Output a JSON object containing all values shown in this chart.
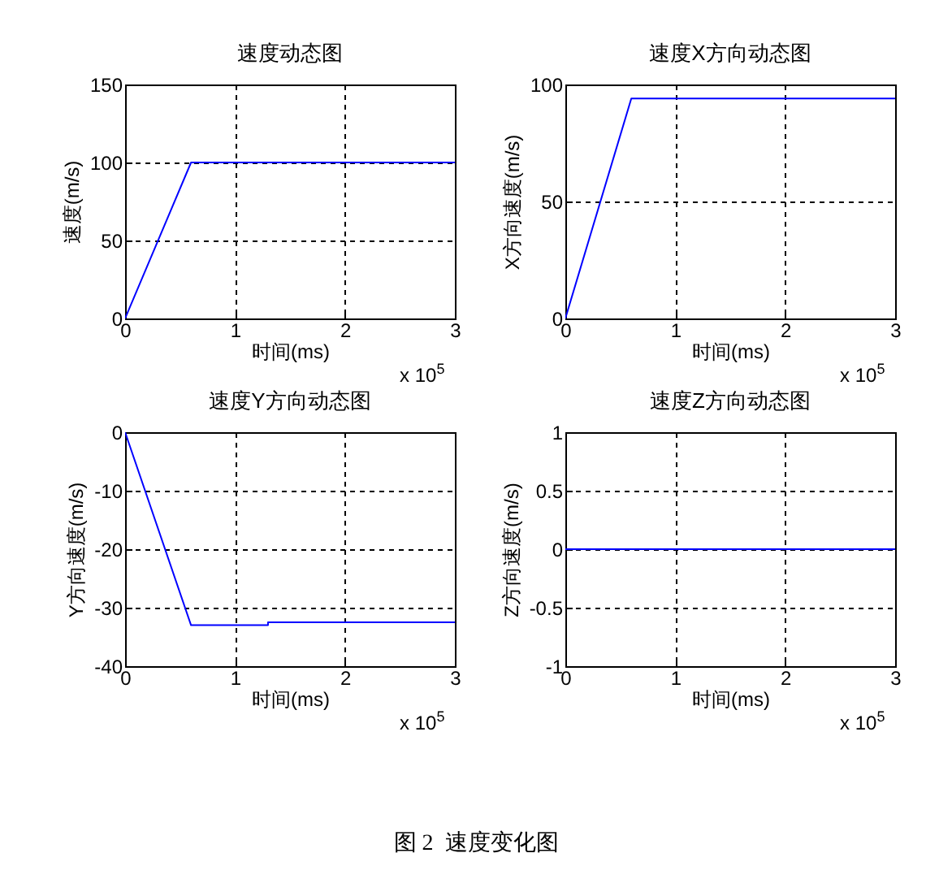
{
  "chart_data": [
    {
      "type": "line",
      "title": "速度动态图",
      "xlabel": "时间(ms)",
      "ylabel": "速度(m/s)",
      "x": [
        0,
        0.6,
        3
      ],
      "series": [
        {
          "color": "#0000ff",
          "values": [
            0,
            100,
            100
          ]
        }
      ],
      "xlim": [
        0,
        3
      ],
      "xticks": [
        0,
        1,
        2,
        3
      ],
      "ylim": [
        0,
        150
      ],
      "yticks": [
        0,
        50,
        100,
        150
      ],
      "grid": true,
      "annotations": [
        "x 10$^{5}$"
      ]
    },
    {
      "type": "line",
      "title": "速度X方向动态图",
      "xlabel": "时间(ms)",
      "ylabel": "X方向速度(m/s)",
      "x": [
        0,
        0.6,
        3
      ],
      "series": [
        {
          "color": "#0000ff",
          "values": [
            0,
            94,
            94
          ]
        }
      ],
      "xlim": [
        0,
        3
      ],
      "xticks": [
        0,
        1,
        2,
        3
      ],
      "ylim": [
        0,
        100
      ],
      "yticks": [
        0,
        50,
        100
      ],
      "grid": true,
      "annotations": [
        "x 10$^{5}$"
      ]
    },
    {
      "type": "line",
      "title": "速度Y方向动态图",
      "xlabel": "时间(ms)",
      "ylabel": "Y方向速度(m/s)",
      "x": [
        0,
        0.6,
        1.3,
        1.3,
        3
      ],
      "series": [
        {
          "color": "#0000ff",
          "values": [
            0,
            -33,
            -33,
            -32.5,
            -32.5
          ]
        }
      ],
      "xlim": [
        0,
        3
      ],
      "xticks": [
        0,
        1,
        2,
        3
      ],
      "ylim": [
        -40,
        0
      ],
      "yticks": [
        -40,
        -30,
        -20,
        -10,
        0
      ],
      "grid": true,
      "annotations": [
        "x 10$^{5}$"
      ]
    },
    {
      "type": "line",
      "title": "速度Z方向动态图",
      "xlabel": "时间(ms)",
      "ylabel": "Z方向速度(m/s)",
      "x": [
        0,
        3
      ],
      "series": [
        {
          "color": "#0000ff",
          "values": [
            0,
            0
          ]
        }
      ],
      "xlim": [
        0,
        3
      ],
      "xticks": [
        0,
        1,
        2,
        3
      ],
      "ylim": [
        -1,
        1
      ],
      "yticks": [
        -1,
        -0.5,
        0,
        0.5,
        1
      ],
      "grid": true,
      "annotations": [
        "x 10$^{5}$",
        "图 2  速度变化图"
      ]
    }
  ]
}
